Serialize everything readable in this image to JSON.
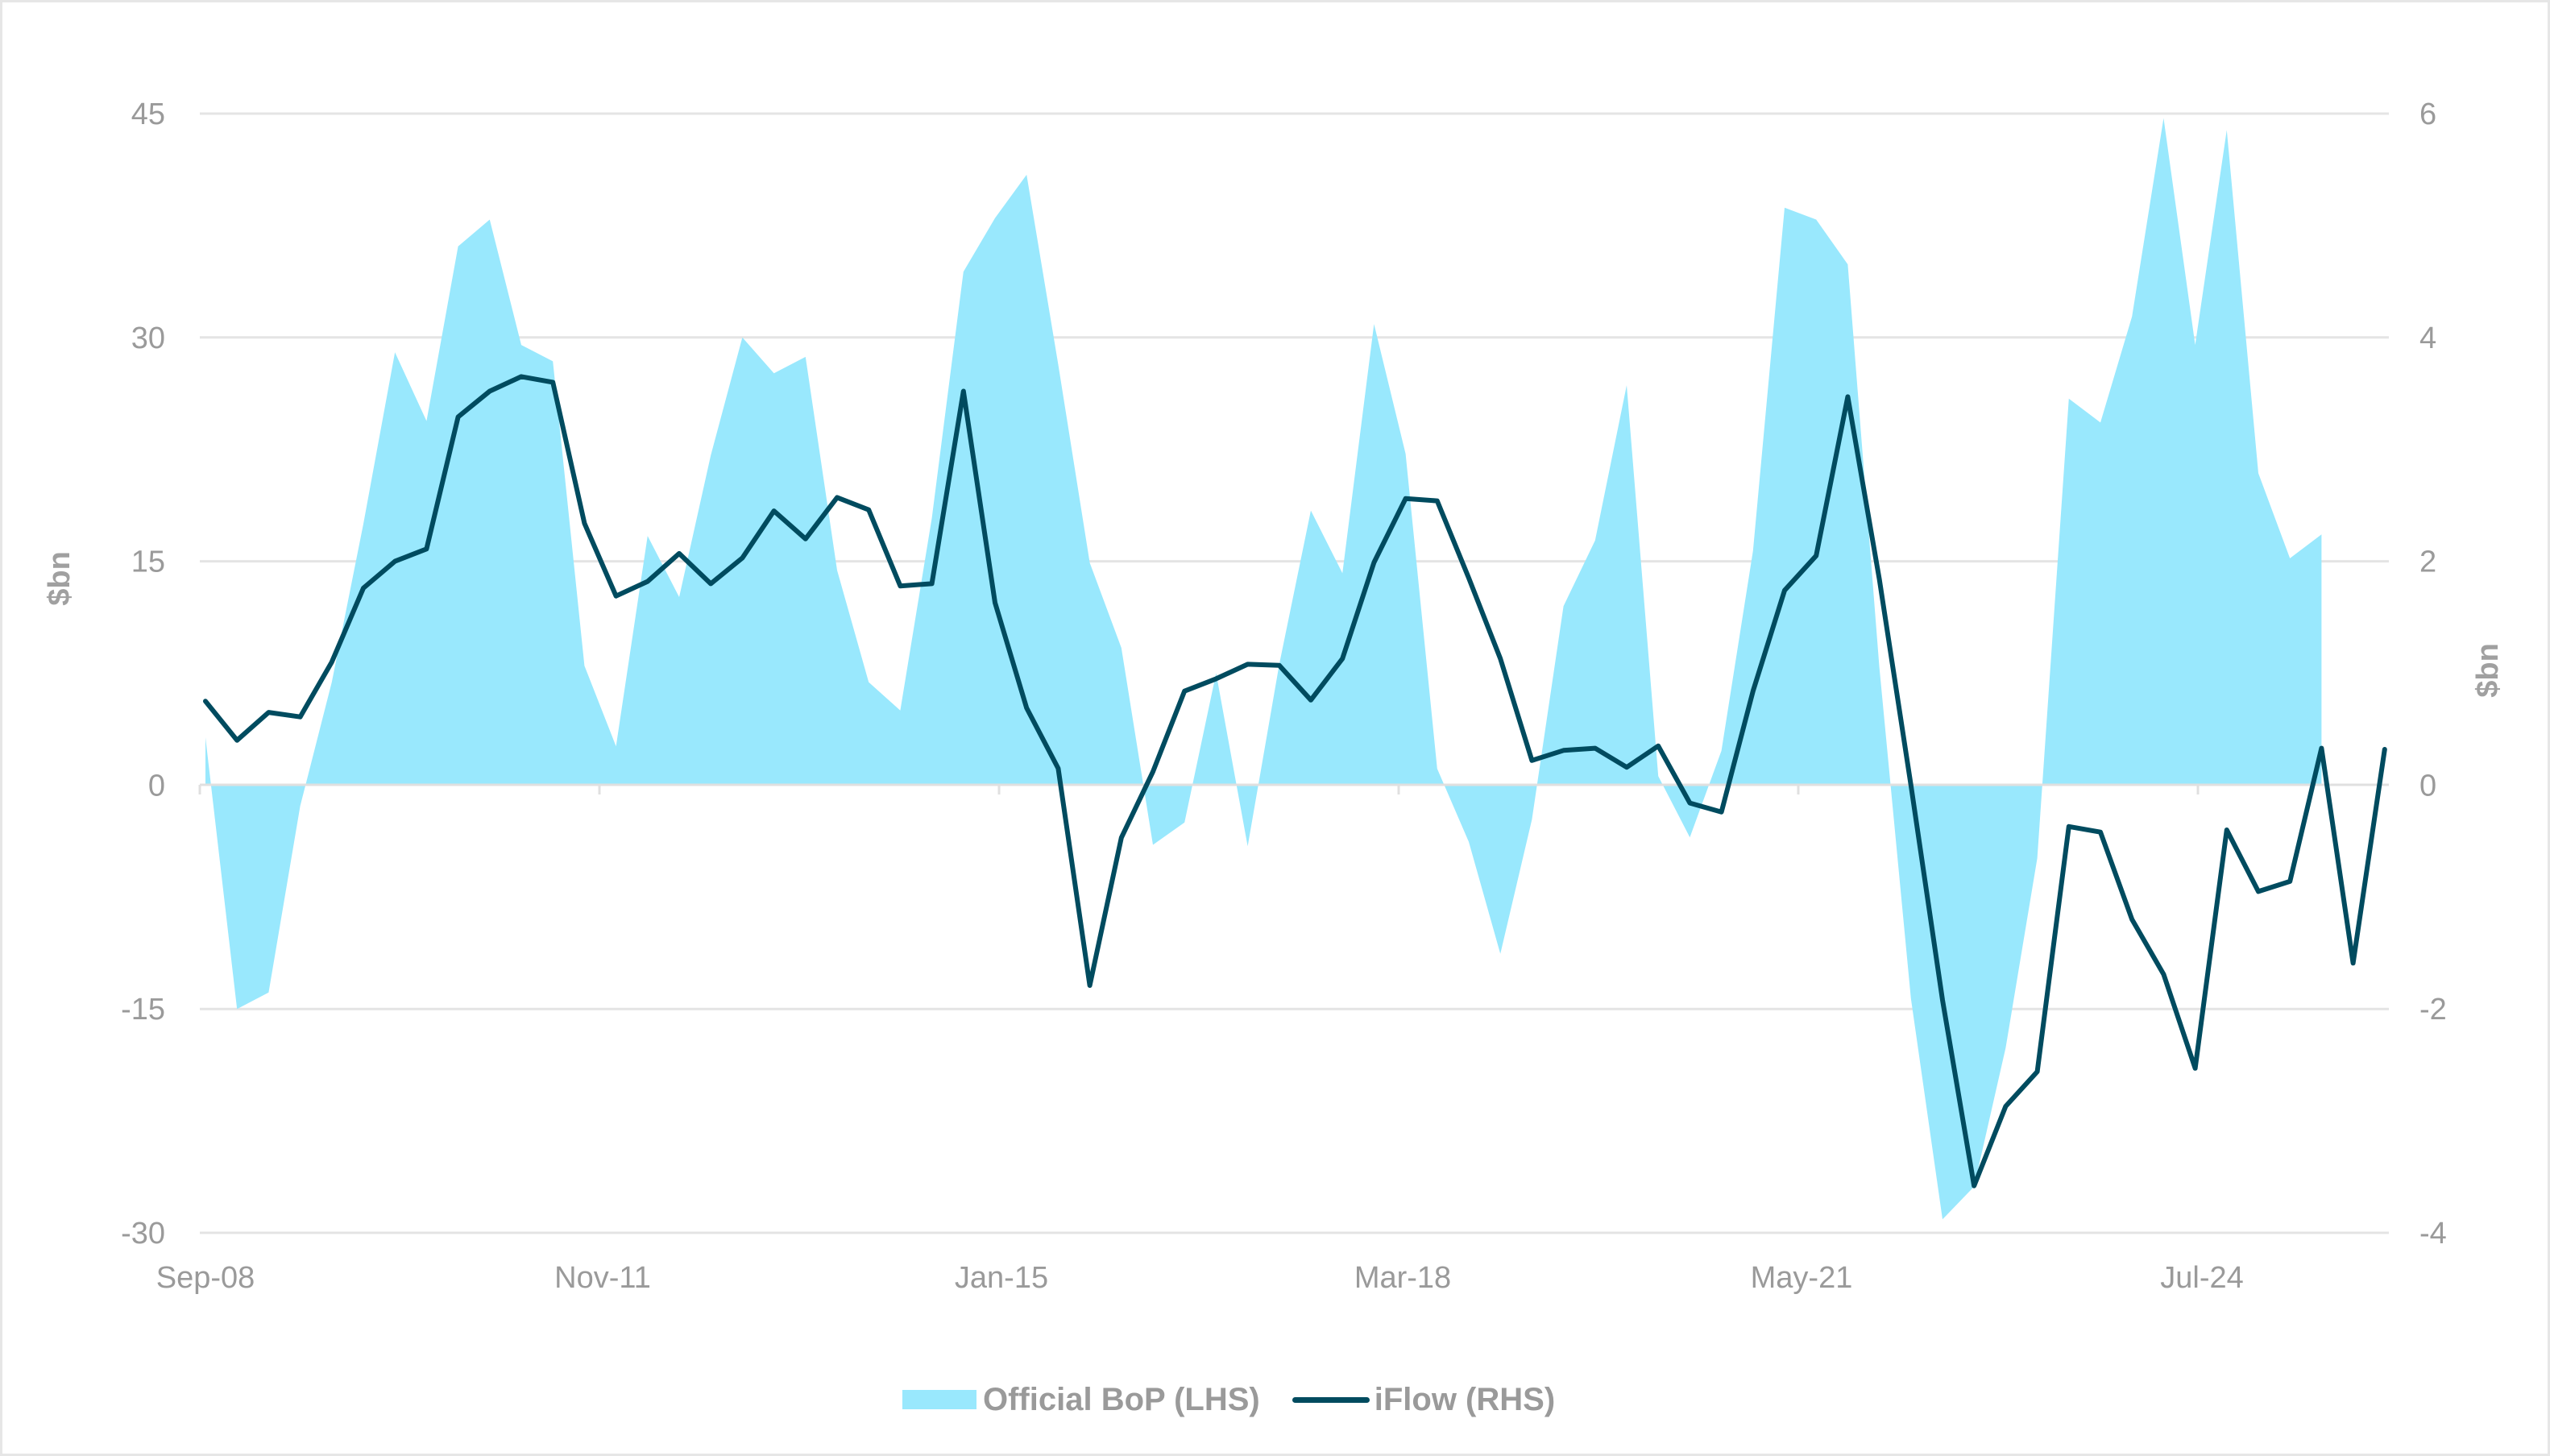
{
  "chart_data": {
    "type": "area+line",
    "title": "",
    "xlabel": "",
    "ylabel_left": "$bn",
    "ylabel_right": "$bn",
    "ylim_left": [
      -30,
      45
    ],
    "ylim_right": [
      -4,
      6
    ],
    "yticks_left": [
      45,
      30,
      15,
      0,
      -15,
      -30
    ],
    "yticks_right": [
      6,
      4,
      2,
      0,
      -2,
      -4
    ],
    "xtick_labels": [
      "Sep-08",
      "Nov-11",
      "Jan-15",
      "Mar-18",
      "May-21",
      "Jul-24"
    ],
    "xtick_index": [
      0,
      12.65,
      25.3,
      37.95,
      50.6,
      63.25
    ],
    "grid": true,
    "legend_position": "bottom",
    "frequency": "quarterly",
    "x_start": "Sep-08",
    "x_end": "Dec-25",
    "series": [
      {
        "name": "Official BoP (LHS)",
        "type": "area",
        "axis": "left",
        "color": "#99e8fd",
        "values": [
          3.2,
          -15.0,
          -13.9,
          -1.4,
          6.9,
          17.5,
          29.0,
          24.4,
          36.1,
          37.9,
          29.5,
          28.4,
          8.0,
          2.6,
          16.7,
          12.6,
          22.1,
          30.0,
          27.6,
          28.7,
          14.4,
          6.9,
          5.0,
          17.9,
          34.4,
          38.0,
          40.9,
          28.2,
          14.9,
          9.2,
          -4.0,
          -2.5,
          7.5,
          -4.1,
          8.1,
          18.4,
          14.2,
          30.9,
          22.2,
          1.1,
          -3.8,
          -11.3,
          -2.3,
          12.0,
          16.4,
          26.8,
          0.6,
          -3.5,
          2.3,
          15.7,
          38.7,
          37.9,
          34.9,
          7.9,
          -14.3,
          -29.1,
          -26.9,
          -17.6,
          -4.9,
          25.9,
          24.3,
          31.4,
          44.7,
          29.5,
          43.9,
          20.9,
          15.2,
          16.8
        ]
      },
      {
        "name": "iFlow (RHS)",
        "type": "line",
        "axis": "right",
        "color": "#004b5f",
        "values": [
          0.75,
          0.4,
          0.65,
          0.61,
          1.1,
          1.76,
          2.0,
          2.11,
          3.29,
          3.52,
          3.65,
          3.6,
          2.34,
          1.69,
          1.82,
          2.07,
          1.8,
          2.03,
          2.45,
          2.2,
          2.57,
          2.46,
          1.78,
          1.8,
          3.52,
          1.63,
          0.69,
          0.15,
          -1.79,
          -0.47,
          0.12,
          0.84,
          0.95,
          1.08,
          1.07,
          0.76,
          1.13,
          1.99,
          2.56,
          2.54,
          1.85,
          1.13,
          0.22,
          0.31,
          0.33,
          0.16,
          0.35,
          -0.16,
          -0.24,
          0.84,
          1.74,
          2.05,
          3.47,
          1.84,
          0.0,
          -1.92,
          -3.58,
          -2.87,
          -2.56,
          -0.37,
          -0.42,
          -1.2,
          -1.69,
          -2.53,
          -0.4,
          -0.95,
          -0.86,
          0.33,
          -1.59,
          0.32
        ]
      }
    ]
  },
  "legend": {
    "items": [
      {
        "label": "Official BoP (LHS)"
      },
      {
        "label": "iFlow (RHS)"
      }
    ]
  },
  "colors": {
    "area": "#99e8fd",
    "line": "#004b5f",
    "grid": "#e4e4e4",
    "text": "#9a9a9a",
    "border": "#e6e6e6"
  }
}
